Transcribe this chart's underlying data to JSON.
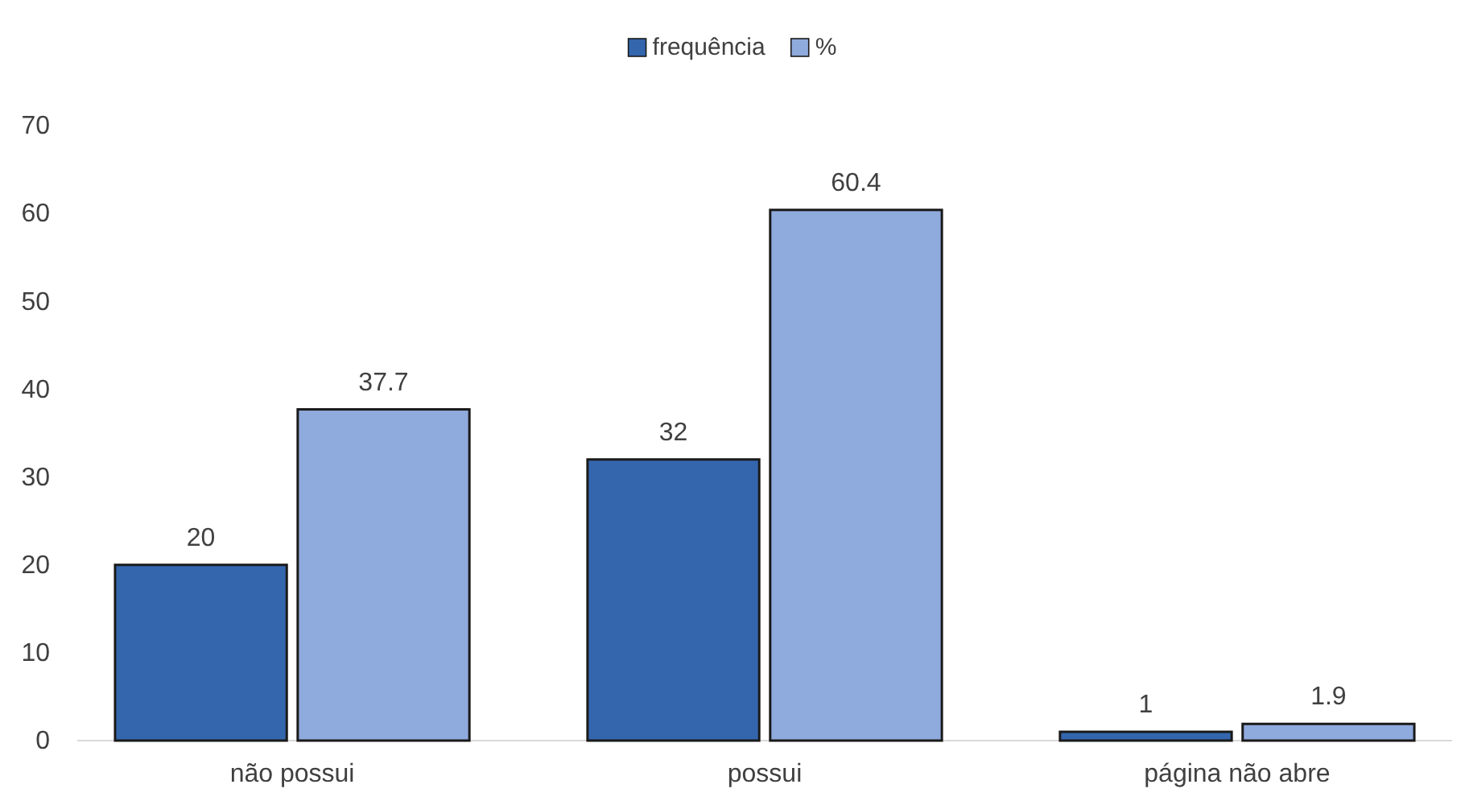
{
  "chart_data": {
    "type": "bar",
    "categories": [
      "não possui",
      "possui",
      "página não abre"
    ],
    "series": [
      {
        "name": "frequência",
        "color": "#3466ae",
        "values": [
          20,
          32,
          1
        ]
      },
      {
        "name": "%",
        "color": "#8faadc",
        "values": [
          37.7,
          60.4,
          1.9
        ]
      }
    ],
    "ylim": [
      0,
      70
    ],
    "yticks": [
      0,
      10,
      20,
      30,
      40,
      50,
      60,
      70
    ],
    "grid": false,
    "legend": "top",
    "data_labels": true
  }
}
